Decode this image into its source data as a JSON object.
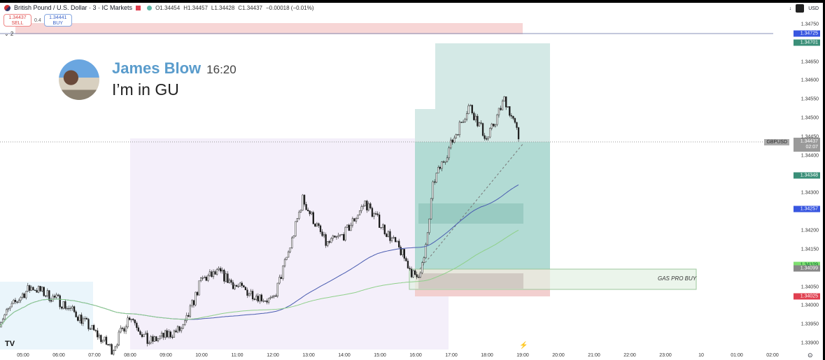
{
  "header": {
    "symbol": "British Pound / U.S. Dollar · 3 · IC Markets",
    "open": "O1.34454",
    "high": "H1.34457",
    "low": "L1.34428",
    "close": "C1.34437",
    "change": "−0.00018 (−0.01%)"
  },
  "trade": {
    "sell_price": "1.34437",
    "sell_label": "SELL",
    "spread": "0.4",
    "buy_price": "1.34441",
    "buy_label": "BUY"
  },
  "indicators_collapsed": "⌄ 2",
  "currency": "USD",
  "chat": {
    "name": "James Blow",
    "time": "16:20",
    "message": "I’m in GU"
  },
  "annotation": "GAS PRO BUY",
  "price_line": {
    "symbol": "GBPUSD",
    "price": "1.34437",
    "countdown": "02:07"
  },
  "colors": {
    "up": "#ffffff",
    "down": "#1a1a1a",
    "ma_slow": "#4a5cb0",
    "ma_fast": "#8fd08a",
    "profit": "#b2dbd4",
    "stop": "#f5cccc"
  },
  "chart_data": {
    "type": "candlestick",
    "timeframe": "3",
    "ylim": [
      1.339,
      1.3475
    ],
    "y_ticks": [
      "1.34750",
      "1.34650",
      "1.34600",
      "1.34550",
      "1.34500",
      "1.34450",
      "1.34400",
      "1.34300",
      "1.34200",
      "1.34150",
      "1.34050",
      "1.34000",
      "1.33950",
      "1.33900"
    ],
    "x_ticks": [
      "05:00",
      "06:00",
      "07:00",
      "08:00",
      "09:00",
      "10:00",
      "11:00",
      "12:00",
      "13:00",
      "14:00",
      "15:00",
      "16:00",
      "17:00",
      "18:00",
      "19:00",
      "20:00",
      "21:00",
      "22:00",
      "23:00",
      "10",
      "01:00",
      "02:00"
    ],
    "price_tags": [
      {
        "value": "1.34725",
        "color": "#3856e0"
      },
      {
        "value": "1.34701",
        "color": "#3a8f78"
      },
      {
        "value": "1.34348",
        "color": "#3a8f78"
      },
      {
        "value": "1.34257",
        "color": "#3856e0"
      },
      {
        "value": "1.34109",
        "color": "#7ee070"
      },
      {
        "value": "1.34099",
        "color": "#888888"
      },
      {
        "value": "1.34025",
        "color": "#e04050"
      }
    ],
    "closes_approx": [
      [
        "04:20",
        1.33958
      ],
      [
        "05:00",
        1.34032
      ],
      [
        "05:15",
        1.3405
      ],
      [
        "06:00",
        1.34014
      ],
      [
        "06:30",
        1.33977
      ],
      [
        "07:00",
        1.3393
      ],
      [
        "07:30",
        1.33883
      ],
      [
        "08:00",
        1.33977
      ],
      [
        "08:30",
        1.33902
      ],
      [
        "09:00",
        1.3392
      ],
      [
        "09:30",
        1.3394
      ],
      [
        "10:00",
        1.3407
      ],
      [
        "10:30",
        1.34088
      ],
      [
        "11:00",
        1.3405
      ],
      [
        "11:30",
        1.3403
      ],
      [
        "12:00",
        1.3401
      ],
      [
        "12:30",
        1.34163
      ],
      [
        "12:50",
        1.34284
      ],
      [
        "13:30",
        1.34163
      ],
      [
        "14:00",
        1.3419
      ],
      [
        "14:35",
        1.34275
      ],
      [
        "15:00",
        1.3422
      ],
      [
        "15:35",
        1.34145
      ],
      [
        "16:00",
        1.3407
      ],
      [
        "16:15",
        1.34125
      ],
      [
        "16:30",
        1.3433
      ],
      [
        "17:00",
        1.34433
      ],
      [
        "17:30",
        1.34535
      ],
      [
        "18:00",
        1.34442
      ],
      [
        "18:30",
        1.34553
      ],
      [
        "18:50",
        1.34465
      ],
      [
        "18:55",
        1.34437
      ]
    ]
  }
}
